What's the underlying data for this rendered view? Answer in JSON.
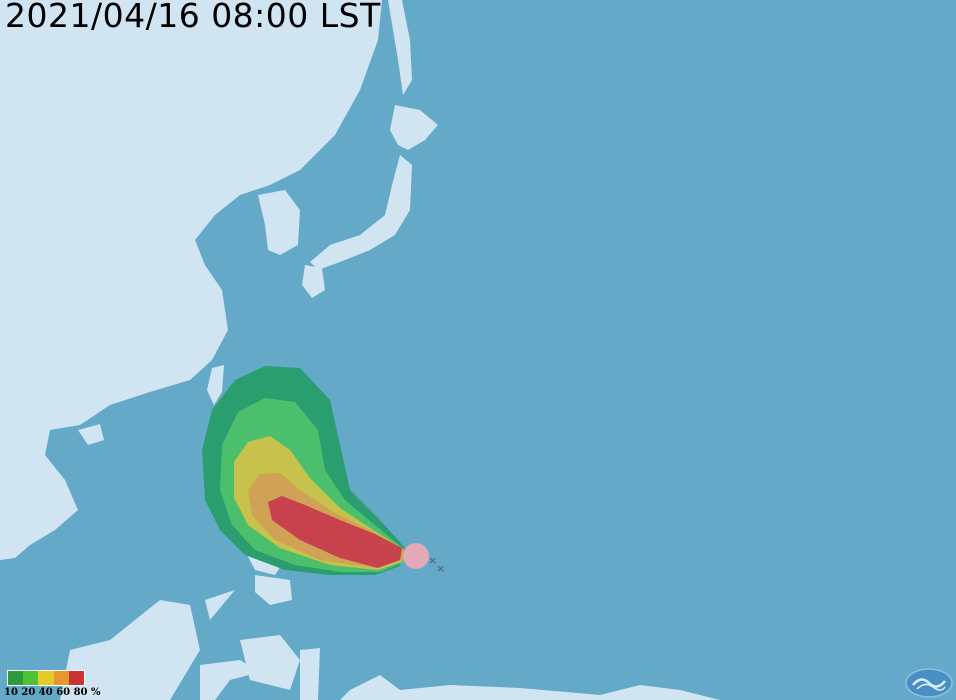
{
  "title": "2021/04/16 08:00 LST",
  "legend": {
    "labels": "10 20 40 60 80 %",
    "levels": [
      10,
      20,
      40,
      60,
      80
    ],
    "unit": "%",
    "colors": [
      "#2e9a40",
      "#4cc236",
      "#e2cc2a",
      "#e8962e",
      "#c83434"
    ]
  },
  "colors": {
    "ocean": "#64a9c8",
    "land": "#d0e4f1",
    "cone_10": "#2a9e6e",
    "cone_20": "#4cbf6c",
    "cone_40": "#c6c24c",
    "cone_60": "#cfa256",
    "cone_80": "#c8424e",
    "current_position": "#f0a8b4"
  },
  "logo": {
    "text": "CWB"
  },
  "icons": {
    "past_track": "x-mark-icon"
  }
}
